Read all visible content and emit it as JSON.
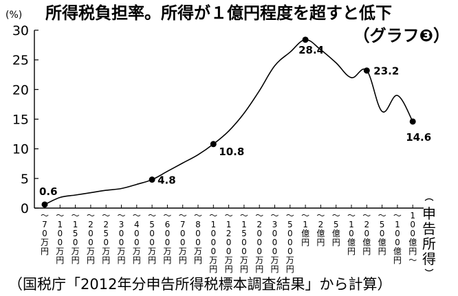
{
  "chart_data": {
    "type": "line",
    "title": "所得税負担率。所得が１億円程度を超すと低下",
    "subtitle": "（グラフ❸）",
    "unit": "(%)",
    "ylim": [
      0,
      30
    ],
    "yticks": [
      "0",
      "5",
      "10",
      "15",
      "20",
      "25",
      "30"
    ],
    "xlabel": "申告所得",
    "source": "（国税庁「2012年分申告所得税標本調査結果」から計算）",
    "categories": [
      "〜70万円",
      "〜100万円",
      "〜150万円",
      "〜200万円",
      "〜250万円",
      "〜300万円",
      "〜400万円",
      "〜500万円",
      "〜600万円",
      "〜700万円",
      "〜800万円",
      "〜1000万円",
      "〜1200万円",
      "〜1500万円",
      "〜2000万円",
      "〜3000万円",
      "〜5000万円",
      "〜1億円",
      "〜2億円",
      "〜5億円",
      "〜10億円",
      "〜20億円",
      "〜50億円",
      "〜100億円",
      "100億円〜"
    ],
    "series": [
      {
        "values": [
          0.6,
          1.8,
          2.2,
          2.6,
          3.0,
          3.3,
          4.0,
          4.8,
          6.2,
          7.6,
          9.0,
          10.8,
          13.0,
          16.0,
          19.8,
          24.0,
          26.3,
          28.4,
          26.7,
          24.5,
          22.0,
          23.2,
          16.3,
          19.0,
          14.6
        ]
      }
    ],
    "data_labels": [
      {
        "index": 0,
        "text": "0.6"
      },
      {
        "index": 7,
        "text": "4.8"
      },
      {
        "index": 11,
        "text": "10.8"
      },
      {
        "index": 17,
        "text": "28.4"
      },
      {
        "index": 21,
        "text": "23.2"
      },
      {
        "index": 24,
        "text": "14.6"
      }
    ]
  }
}
